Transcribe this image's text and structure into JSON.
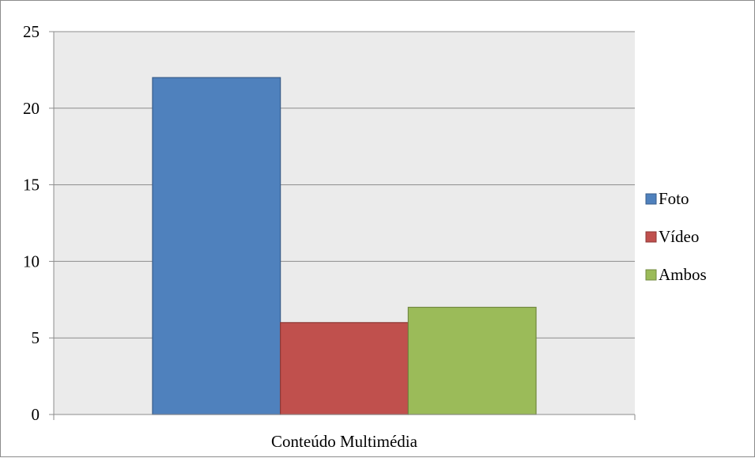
{
  "chart_data": {
    "type": "bar",
    "title": "",
    "xlabel": "",
    "ylabel": "",
    "categories": [
      "Conteúdo Multimédia"
    ],
    "series": [
      {
        "name": "Foto",
        "values": [
          22
        ],
        "color": "#4f81bd",
        "stroke": "#385d8a"
      },
      {
        "name": "Vídeo",
        "values": [
          6
        ],
        "color": "#c0504d",
        "stroke": "#8c3836"
      },
      {
        "name": "Ambos",
        "values": [
          7
        ],
        "color": "#9bbb59",
        "stroke": "#71893f"
      }
    ],
    "ylim": [
      0,
      25
    ],
    "yticks": [
      0,
      5,
      10,
      15,
      20,
      25
    ],
    "grid": true,
    "legend": "right",
    "plot_background": "#ebebeb"
  }
}
